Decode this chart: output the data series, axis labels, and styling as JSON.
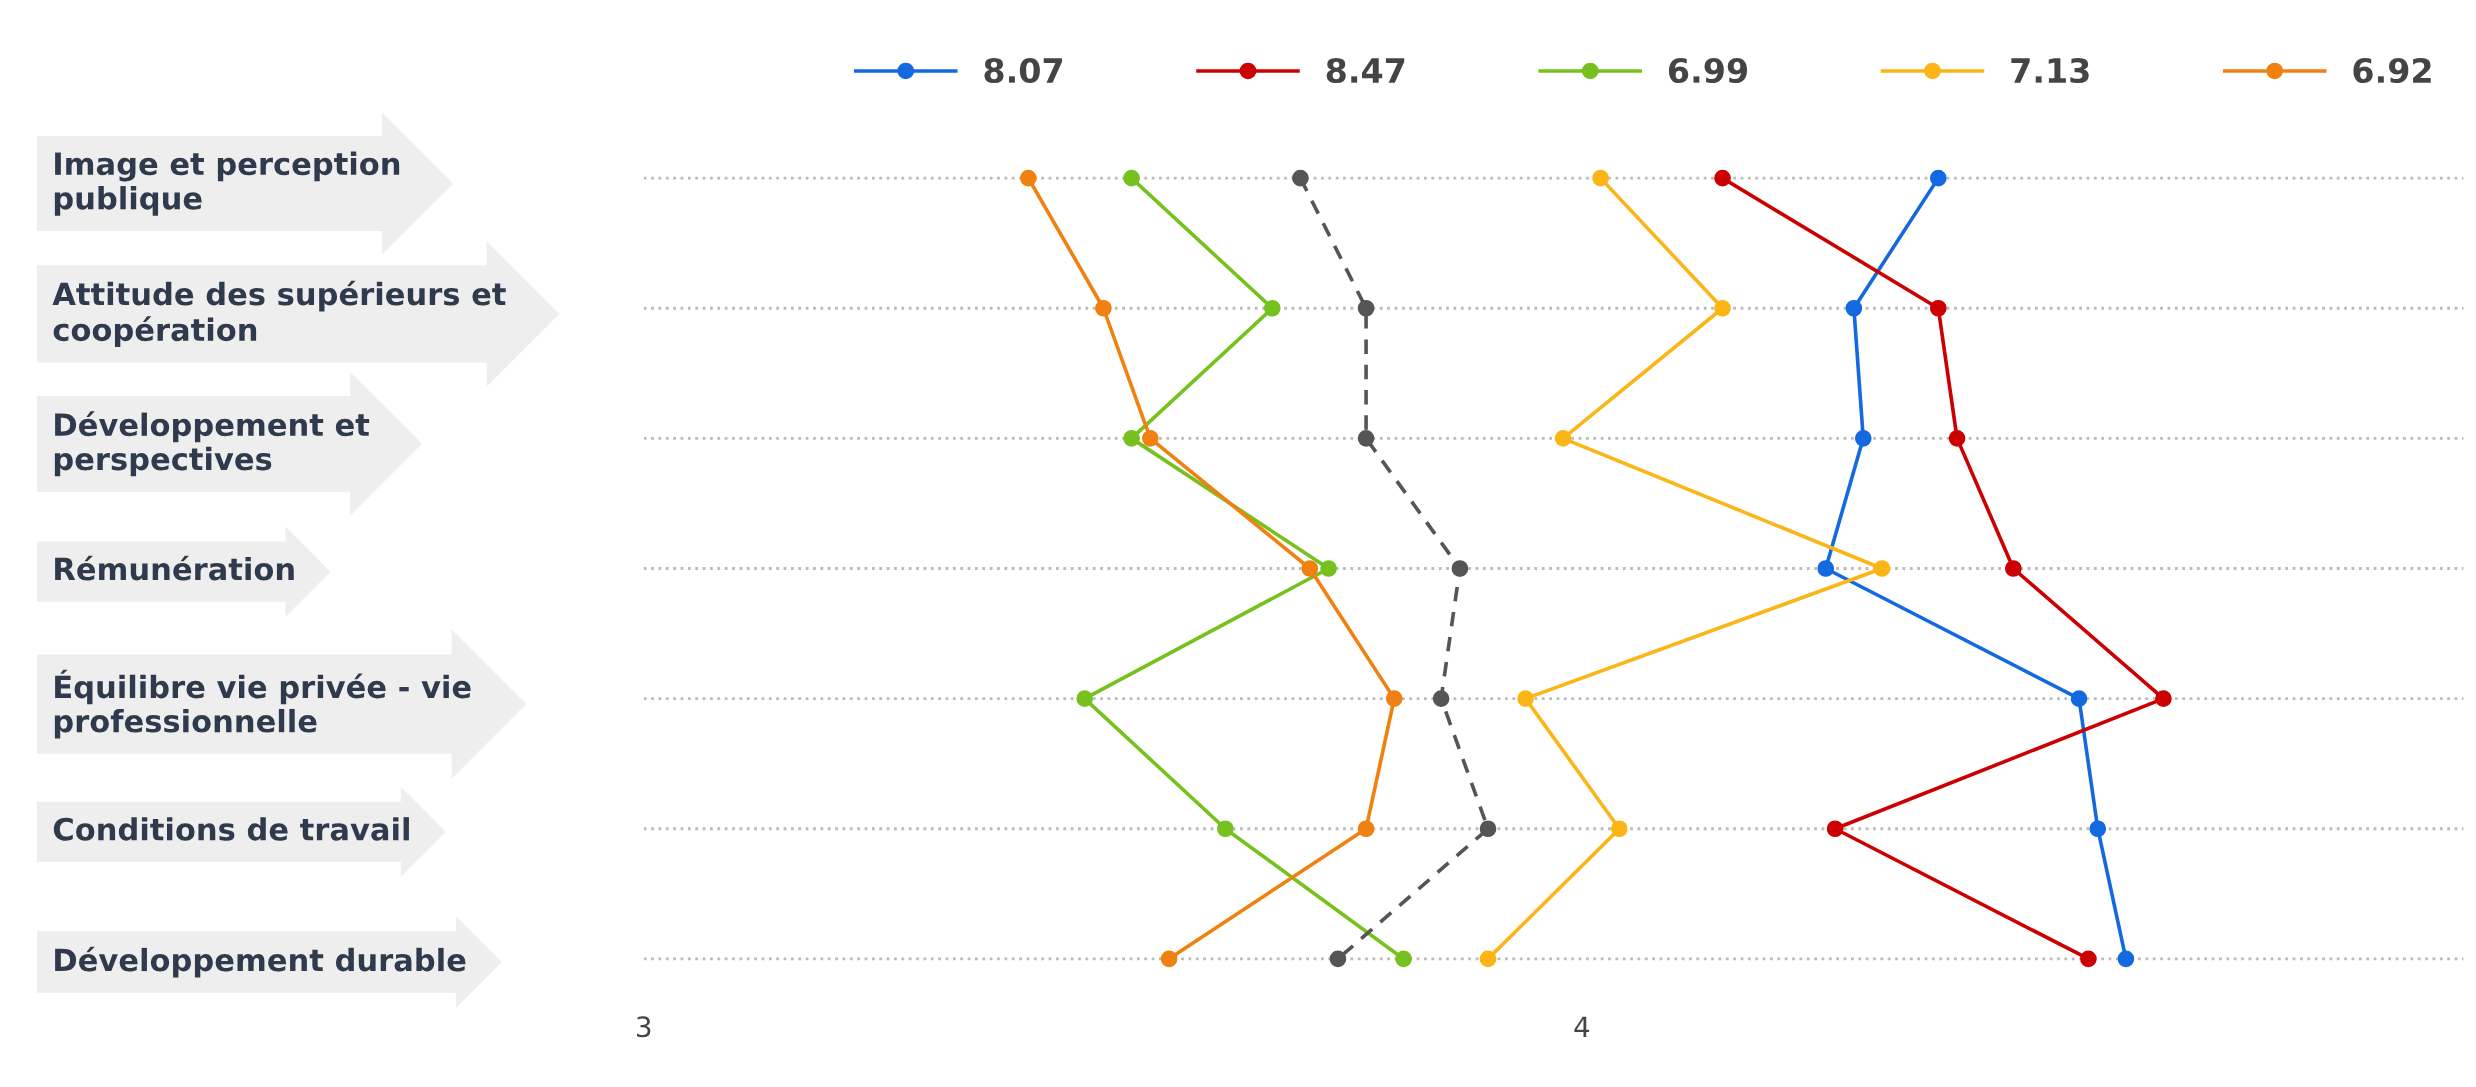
{
  "chart_data": {
    "type": "line",
    "orientation": "horizontal",
    "categories": [
      "Image et perception\npublique",
      "Attitude des supérieurs et\ncoopération",
      "Développement et\nperspectives",
      "Rémunération",
      "Équilibre vie privée - vie\nprofessionnelle",
      "Conditions de travail",
      "Développement durable"
    ],
    "series": [
      {
        "name": "8.07",
        "color": "#1469e0",
        "values": [
          4.38,
          4.29,
          4.3,
          4.26,
          4.53,
          4.55,
          4.58
        ]
      },
      {
        "name": "8.47",
        "color": "#cc0000",
        "values": [
          4.15,
          4.38,
          4.4,
          4.46,
          4.62,
          4.27,
          4.54
        ]
      },
      {
        "name": "6.99",
        "color": "#77c11e",
        "values": [
          3.52,
          3.67,
          3.52,
          3.73,
          3.47,
          3.62,
          3.81
        ]
      },
      {
        "name": "7.13",
        "color": "#fbb516",
        "values": [
          4.02,
          4.15,
          3.98,
          4.32,
          3.94,
          4.04,
          3.9
        ]
      },
      {
        "name": "6.92",
        "color": "#f08010",
        "values": [
          3.41,
          3.49,
          3.54,
          3.71,
          3.8,
          3.77,
          3.56
        ]
      },
      {
        "color": "#555555",
        "line_style": "dashed",
        "values": [
          3.7,
          3.77,
          3.77,
          3.87,
          3.85,
          3.9,
          3.74
        ]
      }
    ],
    "xlim": [
      3,
      4.94
    ],
    "xticks": [
      3,
      4
    ],
    "grid": "y",
    "legend": "top",
    "marker": "circle",
    "line_style": "solid"
  }
}
